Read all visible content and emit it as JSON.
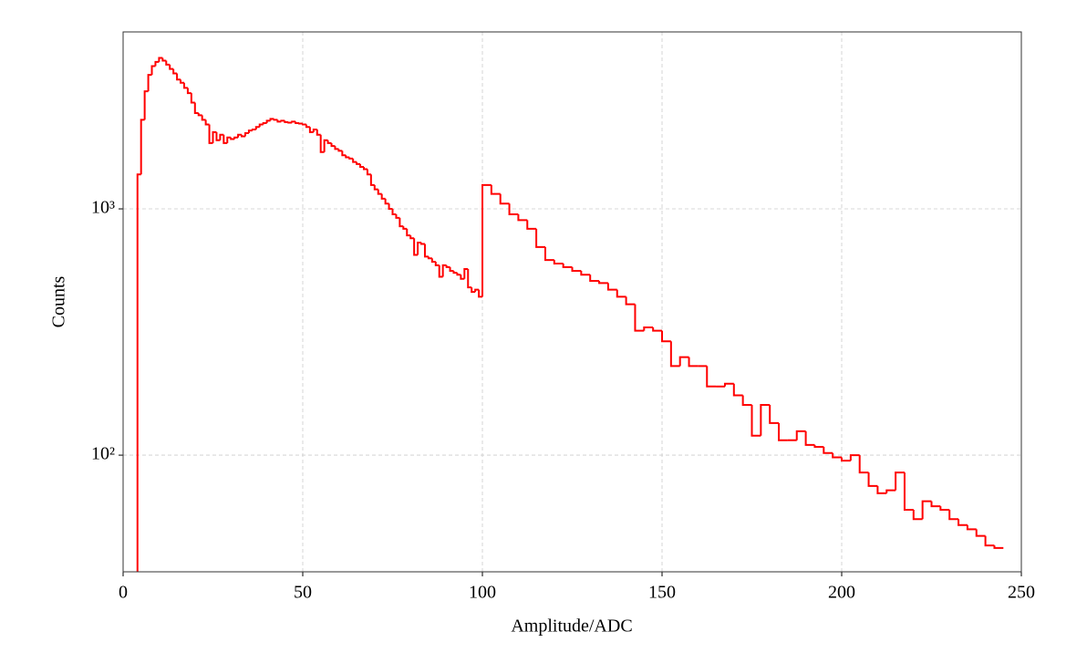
{
  "chart_data": {
    "type": "histogram",
    "xlabel": "Amplitude/ADC",
    "ylabel": "Counts",
    "color": "#ff0000",
    "log_y": true,
    "grid": true,
    "xlim": [
      0,
      250
    ],
    "xticks": [
      0,
      50,
      100,
      150,
      200,
      250
    ],
    "ylim": [
      33.6,
      5230
    ],
    "yticks": [
      {
        "value": 100,
        "label": "10²"
      },
      {
        "value": 1000,
        "label": "10³"
      }
    ],
    "bins": [
      4,
      5,
      6,
      7,
      8,
      9,
      10,
      11,
      12,
      13,
      14,
      15,
      16,
      17,
      18,
      19,
      20,
      21,
      22,
      23,
      24,
      25,
      26,
      27,
      28,
      29,
      30,
      31,
      32,
      33,
      34,
      35,
      36,
      37,
      38,
      39,
      40,
      41,
      42,
      43,
      44,
      45,
      46,
      47,
      48,
      49,
      50,
      51,
      52,
      53,
      54,
      55,
      56,
      57,
      58,
      59,
      60,
      61,
      62,
      63,
      64,
      65,
      66,
      67,
      68,
      69,
      70,
      71,
      72,
      73,
      74,
      75,
      76,
      77,
      78,
      79,
      80,
      81,
      82,
      83,
      84,
      85,
      86,
      87,
      88,
      89,
      90,
      91,
      92,
      93,
      94,
      95,
      96,
      97,
      98,
      99,
      100,
      102.5,
      105,
      107.5,
      110,
      112.5,
      115,
      117.5,
      120,
      122.5,
      125,
      127.5,
      130,
      132.5,
      135,
      137.5,
      140,
      142.5,
      145,
      147.5,
      150,
      152.5,
      155,
      157.5,
      160,
      162.5,
      165,
      167.5,
      170,
      172.5,
      175,
      177.5,
      180,
      182.5,
      185,
      187.5,
      190,
      192.5,
      195,
      197.5,
      200,
      202.5,
      205,
      207.5,
      210,
      212.5,
      215,
      217.5,
      220,
      222.5,
      225,
      227.5,
      230,
      232.5,
      235,
      237.5,
      240,
      242.5,
      245
    ],
    "counts": [
      1380,
      2300,
      3000,
      3500,
      3800,
      3950,
      4100,
      4000,
      3850,
      3700,
      3550,
      3350,
      3250,
      3100,
      2950,
      2700,
      2450,
      2400,
      2300,
      2200,
      1850,
      2050,
      1900,
      2000,
      1850,
      1950,
      1920,
      1950,
      2000,
      1970,
      2030,
      2080,
      2100,
      2150,
      2200,
      2230,
      2280,
      2320,
      2300,
      2260,
      2280,
      2250,
      2240,
      2260,
      2230,
      2220,
      2200,
      2150,
      2050,
      2100,
      2000,
      1700,
      1900,
      1850,
      1800,
      1750,
      1720,
      1650,
      1620,
      1600,
      1550,
      1520,
      1480,
      1450,
      1380,
      1250,
      1200,
      1150,
      1100,
      1050,
      1000,
      950,
      920,
      850,
      830,
      780,
      760,
      650,
      730,
      720,
      640,
      630,
      610,
      590,
      530,
      590,
      580,
      560,
      550,
      540,
      520,
      570,
      480,
      460,
      470,
      440,
      1250,
      1150,
      1050,
      950,
      900,
      830,
      700,
      620,
      600,
      580,
      560,
      540,
      510,
      500,
      470,
      440,
      410,
      320,
      330,
      320,
      290,
      230,
      250,
      230,
      230,
      190,
      190,
      195,
      175,
      160,
      120,
      160,
      135,
      115,
      115,
      125,
      110,
      108,
      102,
      98,
      95,
      100,
      85,
      75,
      70,
      72,
      85,
      60,
      55,
      65,
      62,
      60,
      55,
      52,
      50,
      47,
      43,
      42
    ]
  }
}
